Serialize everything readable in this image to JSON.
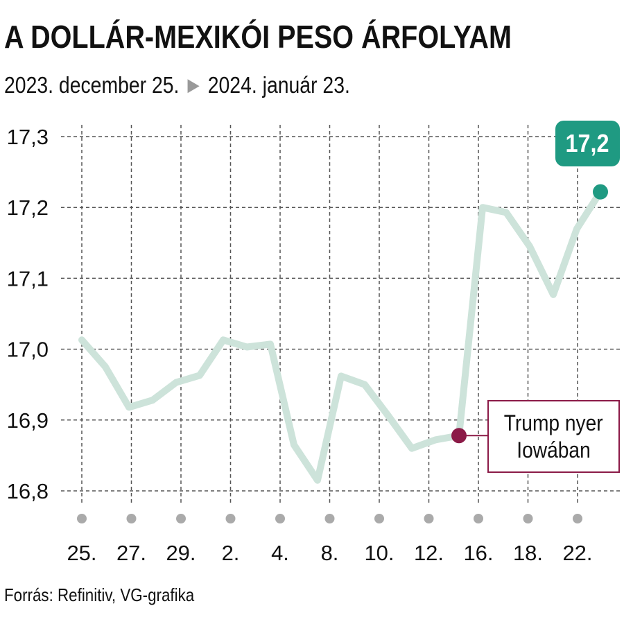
{
  "title": "A DOLLÁR-MEXIKÓI PESO ÁRFOLYAM",
  "subtitle": {
    "from": "2023. december 25.",
    "to": "2024. január 23."
  },
  "source": "Forrás: Refinitiv, VG-grafika",
  "annotation": {
    "lines": [
      "Trump nyer",
      "Iowában"
    ],
    "point_index": 16
  },
  "last_value_label": "17,2",
  "colors": {
    "line": "#cde3da",
    "grid": "#555555",
    "dot": "#aaaaaa",
    "annotation": "#8b1a47",
    "accent": "#1f9a82"
  },
  "chart_data": {
    "type": "line",
    "title": "A DOLLÁR-MEXIKÓI PESO ÁRFOLYAM",
    "xlabel": "",
    "ylabel": "",
    "ylim": [
      16.8,
      17.3
    ],
    "yticks": [
      16.8,
      16.9,
      17.0,
      17.1,
      17.2,
      17.3
    ],
    "ytick_labels": [
      "16,8",
      "16,9",
      "17,0",
      "17,1",
      "17,2",
      "17,3"
    ],
    "xtick_labels": [
      "25.",
      "27.",
      "29.",
      "2.",
      "4.",
      "8.",
      "10.",
      "12.",
      "16.",
      "18.",
      "22."
    ],
    "grid": true,
    "series": [
      {
        "name": "",
        "values": [
          17.013,
          16.975,
          16.918,
          16.928,
          16.953,
          16.963,
          17.013,
          17.003,
          17.007,
          16.865,
          16.815,
          16.962,
          16.95,
          16.906,
          16.86,
          16.872,
          16.878,
          17.2,
          17.193,
          17.145,
          17.077,
          17.17,
          17.222
        ]
      }
    ]
  }
}
